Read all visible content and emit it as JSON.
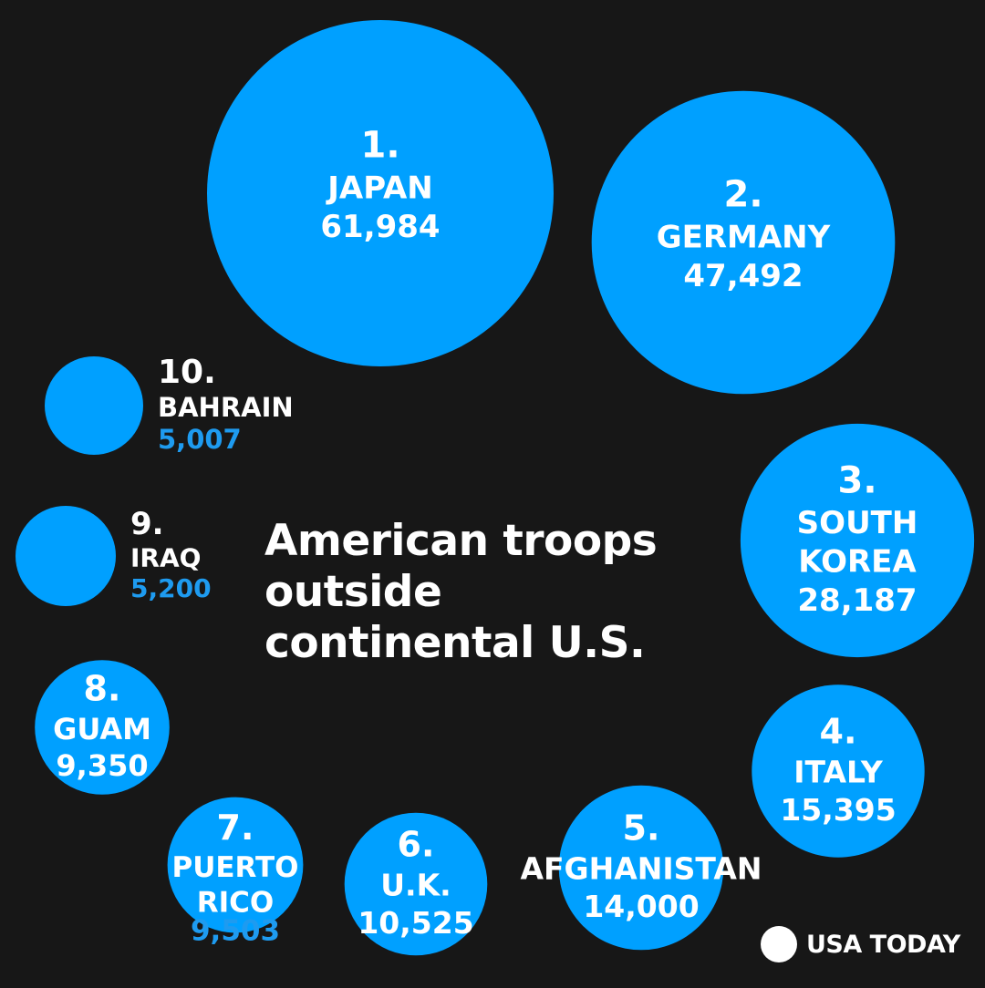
{
  "title_lines": [
    "American troops",
    "outside",
    "continental U.S."
  ],
  "logo_text": "USA TODAY",
  "colors": {
    "background": "#171717",
    "bubble": "#00a0ff",
    "text_on_bubble": "#ffffff",
    "outside_value": "#1e9bf0"
  },
  "chart_data": {
    "type": "bubble",
    "title": "American troops outside continental U.S.",
    "series": [
      {
        "rank": "1.",
        "name_lines": [
          "JAPAN"
        ],
        "value": 61984,
        "value_label": "61,984"
      },
      {
        "rank": "2.",
        "name_lines": [
          "GERMANY"
        ],
        "value": 47492,
        "value_label": "47,492"
      },
      {
        "rank": "3.",
        "name_lines": [
          "SOUTH",
          "KOREA"
        ],
        "value": 28187,
        "value_label": "28,187"
      },
      {
        "rank": "4.",
        "name_lines": [
          "ITALY"
        ],
        "value": 15395,
        "value_label": "15,395"
      },
      {
        "rank": "5.",
        "name_lines": [
          "AFGHANISTAN"
        ],
        "value": 14000,
        "value_label": "14,000"
      },
      {
        "rank": "6.",
        "name_lines": [
          "U.K."
        ],
        "value": 10525,
        "value_label": "10,525"
      },
      {
        "rank": "7.",
        "name_lines": [
          "PUERTO",
          "RICO"
        ],
        "value": 9503,
        "value_label": "9,503"
      },
      {
        "rank": "8.",
        "name_lines": [
          "GUAM"
        ],
        "value": 9350,
        "value_label": "9,350"
      },
      {
        "rank": "9.",
        "name_lines": [
          "IRAQ"
        ],
        "value": 5200,
        "value_label": "5,200"
      },
      {
        "rank": "10.",
        "name_lines": [
          "BAHRAIN"
        ],
        "value": 5007,
        "value_label": "5,007"
      }
    ]
  }
}
